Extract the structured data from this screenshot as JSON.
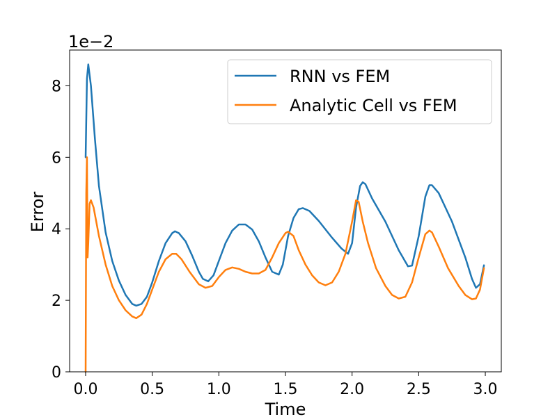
{
  "chart_data": {
    "type": "line",
    "title": "",
    "xlabel": "Time",
    "ylabel": "Error",
    "y_offset_label": "1e−2",
    "xlim": [
      -0.12,
      3.12
    ],
    "ylim": [
      0,
      9
    ],
    "x_ticks": [
      0.0,
      0.5,
      1.0,
      1.5,
      2.0,
      2.5,
      3.0
    ],
    "x_tick_labels": [
      "0.0",
      "0.5",
      "1.0",
      "1.5",
      "2.0",
      "2.5",
      "3.0"
    ],
    "y_ticks": [
      0,
      2,
      4,
      6,
      8
    ],
    "y_tick_labels": [
      "0",
      "2",
      "4",
      "6",
      "8"
    ],
    "grid": false,
    "legend_position": "upper-right",
    "series": [
      {
        "name": "RNN vs FEM",
        "color": "#1f77b4",
        "points": [
          [
            0.0,
            6.0
          ],
          [
            0.01,
            8.2
          ],
          [
            0.02,
            8.6
          ],
          [
            0.04,
            8.0
          ],
          [
            0.07,
            6.5
          ],
          [
            0.1,
            5.2
          ],
          [
            0.15,
            3.9
          ],
          [
            0.2,
            3.1
          ],
          [
            0.25,
            2.55
          ],
          [
            0.3,
            2.15
          ],
          [
            0.35,
            1.9
          ],
          [
            0.38,
            1.85
          ],
          [
            0.42,
            1.9
          ],
          [
            0.46,
            2.1
          ],
          [
            0.5,
            2.5
          ],
          [
            0.55,
            3.1
          ],
          [
            0.6,
            3.6
          ],
          [
            0.65,
            3.88
          ],
          [
            0.67,
            3.93
          ],
          [
            0.7,
            3.88
          ],
          [
            0.75,
            3.65
          ],
          [
            0.8,
            3.25
          ],
          [
            0.85,
            2.8
          ],
          [
            0.88,
            2.6
          ],
          [
            0.92,
            2.53
          ],
          [
            0.96,
            2.7
          ],
          [
            1.0,
            3.1
          ],
          [
            1.05,
            3.6
          ],
          [
            1.1,
            3.95
          ],
          [
            1.15,
            4.12
          ],
          [
            1.2,
            4.12
          ],
          [
            1.25,
            3.98
          ],
          [
            1.3,
            3.65
          ],
          [
            1.35,
            3.2
          ],
          [
            1.4,
            2.8
          ],
          [
            1.45,
            2.72
          ],
          [
            1.48,
            3.0
          ],
          [
            1.52,
            3.8
          ],
          [
            1.56,
            4.3
          ],
          [
            1.6,
            4.55
          ],
          [
            1.63,
            4.58
          ],
          [
            1.68,
            4.5
          ],
          [
            1.75,
            4.22
          ],
          [
            1.85,
            3.75
          ],
          [
            1.92,
            3.45
          ],
          [
            1.97,
            3.3
          ],
          [
            2.0,
            3.6
          ],
          [
            2.03,
            4.6
          ],
          [
            2.06,
            5.2
          ],
          [
            2.08,
            5.3
          ],
          [
            2.1,
            5.25
          ],
          [
            2.15,
            4.85
          ],
          [
            2.25,
            4.2
          ],
          [
            2.35,
            3.4
          ],
          [
            2.42,
            2.95
          ],
          [
            2.45,
            2.97
          ],
          [
            2.5,
            3.8
          ],
          [
            2.55,
            4.9
          ],
          [
            2.58,
            5.22
          ],
          [
            2.6,
            5.22
          ],
          [
            2.65,
            5.0
          ],
          [
            2.75,
            4.2
          ],
          [
            2.85,
            3.2
          ],
          [
            2.9,
            2.6
          ],
          [
            2.93,
            2.35
          ],
          [
            2.96,
            2.45
          ],
          [
            2.99,
            2.98
          ]
        ]
      },
      {
        "name": "Analytic Cell vs FEM",
        "color": "#ff7f0e",
        "points": [
          [
            0.0,
            0.0
          ],
          [
            0.005,
            5.0
          ],
          [
            0.01,
            6.0
          ],
          [
            0.015,
            3.2
          ],
          [
            0.02,
            3.6
          ],
          [
            0.03,
            4.7
          ],
          [
            0.04,
            4.8
          ],
          [
            0.06,
            4.6
          ],
          [
            0.1,
            3.8
          ],
          [
            0.15,
            3.0
          ],
          [
            0.2,
            2.4
          ],
          [
            0.25,
            2.0
          ],
          [
            0.3,
            1.72
          ],
          [
            0.35,
            1.55
          ],
          [
            0.38,
            1.5
          ],
          [
            0.42,
            1.6
          ],
          [
            0.46,
            1.9
          ],
          [
            0.5,
            2.3
          ],
          [
            0.55,
            2.8
          ],
          [
            0.6,
            3.15
          ],
          [
            0.65,
            3.3
          ],
          [
            0.68,
            3.3
          ],
          [
            0.72,
            3.15
          ],
          [
            0.78,
            2.8
          ],
          [
            0.85,
            2.45
          ],
          [
            0.9,
            2.35
          ],
          [
            0.95,
            2.4
          ],
          [
            1.0,
            2.65
          ],
          [
            1.05,
            2.85
          ],
          [
            1.1,
            2.92
          ],
          [
            1.15,
            2.88
          ],
          [
            1.2,
            2.8
          ],
          [
            1.25,
            2.75
          ],
          [
            1.3,
            2.75
          ],
          [
            1.35,
            2.85
          ],
          [
            1.4,
            3.2
          ],
          [
            1.45,
            3.6
          ],
          [
            1.5,
            3.88
          ],
          [
            1.52,
            3.92
          ],
          [
            1.56,
            3.8
          ],
          [
            1.6,
            3.4
          ],
          [
            1.65,
            3.0
          ],
          [
            1.7,
            2.7
          ],
          [
            1.75,
            2.5
          ],
          [
            1.8,
            2.42
          ],
          [
            1.85,
            2.5
          ],
          [
            1.9,
            2.8
          ],
          [
            1.95,
            3.3
          ],
          [
            2.0,
            4.2
          ],
          [
            2.03,
            4.8
          ],
          [
            2.05,
            4.75
          ],
          [
            2.08,
            4.2
          ],
          [
            2.12,
            3.6
          ],
          [
            2.18,
            2.9
          ],
          [
            2.25,
            2.4
          ],
          [
            2.3,
            2.15
          ],
          [
            2.35,
            2.05
          ],
          [
            2.4,
            2.1
          ],
          [
            2.45,
            2.5
          ],
          [
            2.5,
            3.2
          ],
          [
            2.55,
            3.85
          ],
          [
            2.58,
            3.95
          ],
          [
            2.6,
            3.9
          ],
          [
            2.65,
            3.5
          ],
          [
            2.72,
            2.9
          ],
          [
            2.8,
            2.4
          ],
          [
            2.85,
            2.15
          ],
          [
            2.9,
            2.03
          ],
          [
            2.93,
            2.05
          ],
          [
            2.96,
            2.3
          ],
          [
            2.99,
            2.9
          ]
        ]
      }
    ]
  }
}
